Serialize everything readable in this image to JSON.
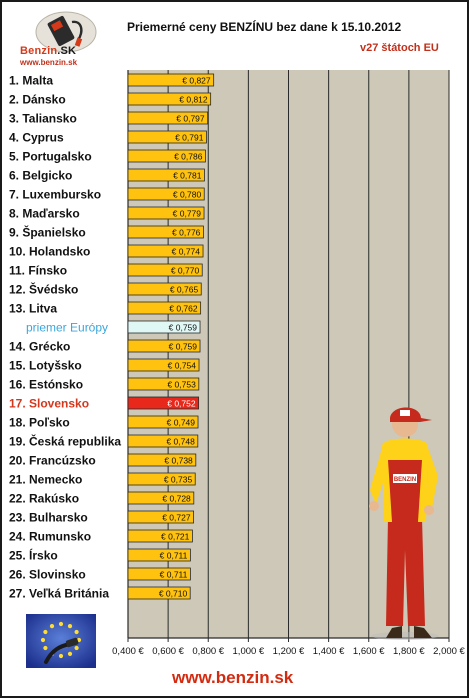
{
  "header": {
    "title": "Priemerné ceny BENZÍNU bez dane k 15.10.2012",
    "subtitle": "v27 štátoch EU"
  },
  "brand": {
    "logo_name": "Benzin",
    "logo_suffix": ".SK",
    "logo_url": "www.benzin.sk",
    "footer_url": "www.benzin.sk"
  },
  "colors": {
    "bar": "#ffc20e",
    "bar_highlight": "#e8281a",
    "bar_average": "#dff8f6",
    "plot_background": "#cdc8b7",
    "label_highlight": "#d4381c",
    "label_average": "#3aa6dc"
  },
  "icons": {
    "logo": "fuel-pump-logo-icon",
    "flag": "eu-flag-fuel-nozzle-icon",
    "mascot": "gas-station-attendant-mascot"
  },
  "chart_data": {
    "type": "bar",
    "orientation": "horizontal",
    "title": "Priemerné ceny BENZÍNU bez dane k 15.10.2012",
    "subtitle": "v27 štátoch EU",
    "xlabel": "",
    "ylabel": "",
    "xlim": [
      0.4,
      2.0
    ],
    "x_ticks": [
      "0,400 €",
      "0,600 €",
      "0,800 €",
      "1,000 €",
      "1,200 €",
      "1,400 €",
      "1,600 €",
      "1,800 €",
      "2,000 €"
    ],
    "x_tick_values": [
      0.4,
      0.6,
      0.8,
      1.0,
      1.2,
      1.4,
      1.6,
      1.8,
      2.0
    ],
    "grid": "vertical",
    "legend": "none",
    "categories": [
      "1. Malta",
      "2. Dánsko",
      "3. Taliansko",
      "4. Cyprus",
      "5. Portugalsko",
      "6. Belgicko",
      "7. Luxembursko",
      "8. Maďarsko",
      "9. Španielsko",
      "10. Holandsko",
      "11. Fínsko",
      "12. Švédsko",
      "13. Litva",
      "priemer Európy",
      "14. Grécko",
      "15. Lotyšsko",
      "16. Estónsko",
      "17. Slovensko",
      "18. Poľsko",
      "19. Česká republika",
      "20. Francúzsko",
      "21. Nemecko",
      "22. Rakúsko",
      "23. Bulharsko",
      "24. Rumunsko",
      "25. Írsko",
      "26. Slovinsko",
      "27. Veľká Británia"
    ],
    "values": [
      0.827,
      0.812,
      0.797,
      0.791,
      0.786,
      0.781,
      0.78,
      0.779,
      0.776,
      0.774,
      0.77,
      0.765,
      0.762,
      0.759,
      0.759,
      0.754,
      0.753,
      0.752,
      0.749,
      0.748,
      0.738,
      0.735,
      0.728,
      0.727,
      0.721,
      0.711,
      0.711,
      0.71
    ],
    "value_labels": [
      "€ 0,827",
      "€ 0,812",
      "€ 0,797",
      "€ 0,791",
      "€ 0,786",
      "€ 0,781",
      "€ 0,780",
      "€ 0,779",
      "€ 0,776",
      "€ 0,774",
      "€ 0,770",
      "€ 0,765",
      "€ 0,762",
      "€ 0,759",
      "€ 0,759",
      "€ 0,754",
      "€ 0,753",
      "€ 0,752",
      "€ 0,749",
      "€ 0,748",
      "€ 0,738",
      "€ 0,735",
      "€ 0,728",
      "€ 0,727",
      "€ 0,721",
      "€ 0,711",
      "€ 0,711",
      "€ 0,710"
    ],
    "highlight": "17. Slovensko",
    "average": "priemer Európy"
  }
}
